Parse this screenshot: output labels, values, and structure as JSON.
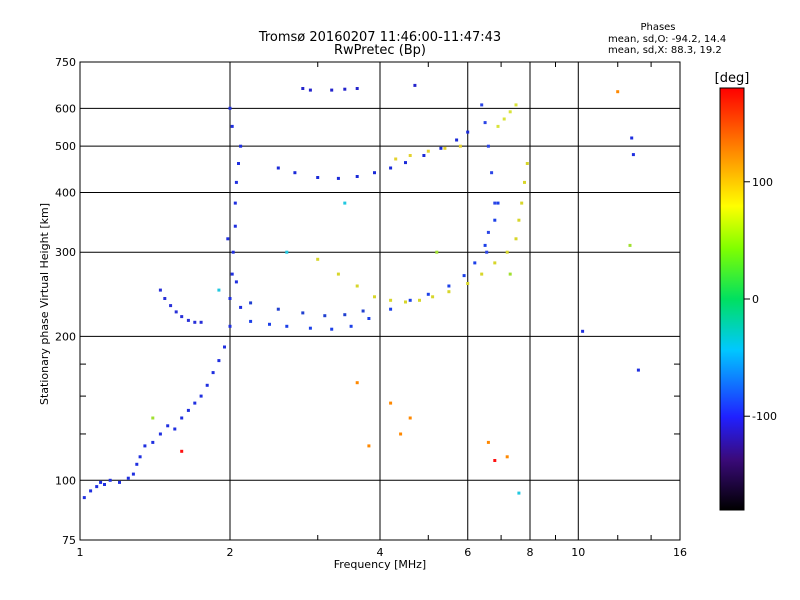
{
  "header": {
    "title": "Tromsø 20160207 11:46:00-11:47:43",
    "subtitle": "RwPretec (Bp)",
    "phases_title": "Phases",
    "phases_o": "mean, sd,O: -94.2, 14.4",
    "phases_x": "mean, sd,X:  88.3, 19.2"
  },
  "colorbar": {
    "label": "[deg]",
    "ticks": [
      {
        "value": 100,
        "label": "100"
      },
      {
        "value": 0,
        "label": "0"
      },
      {
        "value": -100,
        "label": "-100"
      }
    ],
    "range": [
      -180,
      180
    ]
  },
  "chart_data": {
    "type": "scatter",
    "title": "Tromsø 20160207 11:46:00-11:47:43",
    "xlabel": "Frequency [MHz]",
    "ylabel": "Stationary phase Virtual Height [km]",
    "xscale": "log",
    "yscale": "log",
    "xlim": [
      1,
      16
    ],
    "ylim": [
      75,
      750
    ],
    "grid": true,
    "xticks": [
      {
        "value": 1,
        "label": "1"
      },
      {
        "value": 2,
        "label": "2"
      },
      {
        "value": 4,
        "label": "4"
      },
      {
        "value": 6,
        "label": "6"
      },
      {
        "value": 8,
        "label": "8"
      },
      {
        "value": 10,
        "label": "10"
      },
      {
        "value": 16,
        "label": "16"
      }
    ],
    "yticks": [
      {
        "value": 75,
        "label": "75"
      },
      {
        "value": 100,
        "label": "100"
      },
      {
        "value": 200,
        "label": "200"
      },
      {
        "value": 300,
        "label": "300"
      },
      {
        "value": 400,
        "label": "400"
      },
      {
        "value": 500,
        "label": "500"
      },
      {
        "value": 600,
        "label": "600"
      },
      {
        "value": 750,
        "label": "750"
      }
    ],
    "yticks_minor": [
      125,
      150,
      175
    ],
    "series": [
      {
        "color": "#1f2fe0",
        "points": [
          [
            1.02,
            92
          ],
          [
            1.05,
            95
          ],
          [
            1.08,
            97
          ],
          [
            1.1,
            99
          ],
          [
            1.12,
            98
          ],
          [
            1.15,
            100
          ],
          [
            1.2,
            99
          ],
          [
            1.25,
            101
          ],
          [
            1.28,
            103
          ],
          [
            1.3,
            108
          ],
          [
            1.32,
            112
          ],
          [
            1.35,
            118
          ],
          [
            1.4,
            120
          ],
          [
            1.45,
            125
          ],
          [
            1.5,
            130
          ],
          [
            1.55,
            128
          ],
          [
            1.6,
            135
          ],
          [
            1.65,
            140
          ],
          [
            1.7,
            145
          ],
          [
            1.75,
            150
          ],
          [
            1.8,
            158
          ],
          [
            1.85,
            168
          ],
          [
            1.9,
            178
          ],
          [
            1.95,
            190
          ],
          [
            2.0,
            210
          ],
          [
            2.0,
            240
          ],
          [
            2.02,
            270
          ],
          [
            2.03,
            300
          ],
          [
            2.05,
            340
          ],
          [
            2.05,
            380
          ],
          [
            2.06,
            420
          ],
          [
            2.08,
            460
          ],
          [
            2.1,
            500
          ],
          [
            2.02,
            550
          ],
          [
            2.0,
            600
          ],
          [
            1.98,
            320
          ],
          [
            2.06,
            260
          ],
          [
            2.1,
            230
          ]
        ]
      },
      {
        "color": "#2830d8",
        "points": [
          [
            1.45,
            250
          ],
          [
            1.48,
            240
          ],
          [
            1.52,
            232
          ],
          [
            1.56,
            225
          ],
          [
            1.6,
            220
          ],
          [
            1.65,
            216
          ],
          [
            1.7,
            214
          ],
          [
            1.75,
            214
          ]
        ]
      },
      {
        "color": "#1c40e8",
        "points": [
          [
            2.2,
            215
          ],
          [
            2.4,
            212
          ],
          [
            2.6,
            210
          ],
          [
            2.9,
            208
          ],
          [
            3.2,
            207
          ],
          [
            3.5,
            210
          ],
          [
            3.8,
            218
          ],
          [
            4.2,
            228
          ],
          [
            4.6,
            238
          ],
          [
            5.0,
            245
          ],
          [
            5.5,
            255
          ],
          [
            5.9,
            268
          ],
          [
            6.2,
            285
          ],
          [
            6.5,
            310
          ],
          [
            6.8,
            350
          ],
          [
            6.9,
            380
          ]
        ]
      },
      {
        "color": "#2040d0",
        "points": [
          [
            2.2,
            235
          ],
          [
            2.5,
            228
          ],
          [
            2.8,
            224
          ],
          [
            3.1,
            221
          ],
          [
            3.4,
            222
          ],
          [
            3.7,
            226
          ]
        ]
      },
      {
        "color": "#1a2ad8",
        "points": [
          [
            2.5,
            450
          ],
          [
            2.7,
            440
          ],
          [
            3.0,
            430
          ],
          [
            3.3,
            428
          ],
          [
            3.6,
            432
          ],
          [
            3.9,
            440
          ],
          [
            4.2,
            450
          ],
          [
            4.5,
            462
          ],
          [
            4.9,
            478
          ],
          [
            5.3,
            495
          ],
          [
            5.7,
            515
          ],
          [
            6.0,
            535
          ]
        ]
      },
      {
        "color": "#2424cc",
        "points": [
          [
            2.8,
            660
          ],
          [
            2.9,
            655
          ],
          [
            3.2,
            655
          ],
          [
            3.4,
            658
          ],
          [
            3.6,
            660
          ],
          [
            4.7,
            670
          ]
        ]
      },
      {
        "color": "#d7d62a",
        "points": [
          [
            3.0,
            290
          ],
          [
            3.3,
            270
          ],
          [
            3.6,
            255
          ],
          [
            3.9,
            242
          ],
          [
            4.2,
            238
          ],
          [
            4.5,
            236
          ],
          [
            4.8,
            238
          ],
          [
            5.1,
            242
          ],
          [
            5.5,
            248
          ],
          [
            6.0,
            258
          ],
          [
            6.4,
            270
          ],
          [
            6.8,
            285
          ],
          [
            7.2,
            300
          ],
          [
            7.5,
            320
          ],
          [
            7.6,
            350
          ],
          [
            7.7,
            380
          ],
          [
            7.8,
            420
          ],
          [
            7.9,
            460
          ]
        ]
      },
      {
        "color": "#e3d22f",
        "points": [
          [
            4.3,
            470
          ],
          [
            4.6,
            478
          ],
          [
            5.0,
            488
          ],
          [
            5.4,
            495
          ],
          [
            5.8,
            500
          ]
        ]
      },
      {
        "color": "#d9e33a",
        "points": [
          [
            6.9,
            550
          ],
          [
            7.1,
            570
          ],
          [
            7.3,
            590
          ],
          [
            7.5,
            610
          ]
        ]
      },
      {
        "color": "#2b45e6",
        "points": [
          [
            6.4,
            610
          ],
          [
            6.5,
            560
          ],
          [
            6.6,
            500
          ],
          [
            6.7,
            440
          ],
          [
            6.8,
            380
          ],
          [
            6.6,
            330
          ],
          [
            6.55,
            300
          ]
        ]
      },
      {
        "color": "#1e2ee0",
        "points": [
          [
            12.8,
            520
          ],
          [
            12.9,
            480
          ],
          [
            13.2,
            170
          ],
          [
            10.2,
            205
          ]
        ]
      },
      {
        "color": "#ff8800",
        "points": [
          [
            3.6,
            160
          ],
          [
            4.2,
            145
          ],
          [
            4.6,
            135
          ],
          [
            3.8,
            118
          ],
          [
            4.4,
            125
          ],
          [
            6.6,
            120
          ],
          [
            7.2,
            112
          ],
          [
            12.0,
            650
          ]
        ]
      },
      {
        "color": "#ff1010",
        "points": [
          [
            1.6,
            115
          ],
          [
            6.8,
            110
          ]
        ]
      },
      {
        "color": "#20c8e0",
        "points": [
          [
            1.9,
            250
          ],
          [
            2.6,
            300
          ],
          [
            3.4,
            380
          ],
          [
            7.6,
            94
          ]
        ]
      },
      {
        "color": "#a0e030",
        "points": [
          [
            1.4,
            135
          ],
          [
            5.2,
            300
          ],
          [
            7.3,
            270
          ],
          [
            12.7,
            310
          ]
        ]
      }
    ]
  }
}
